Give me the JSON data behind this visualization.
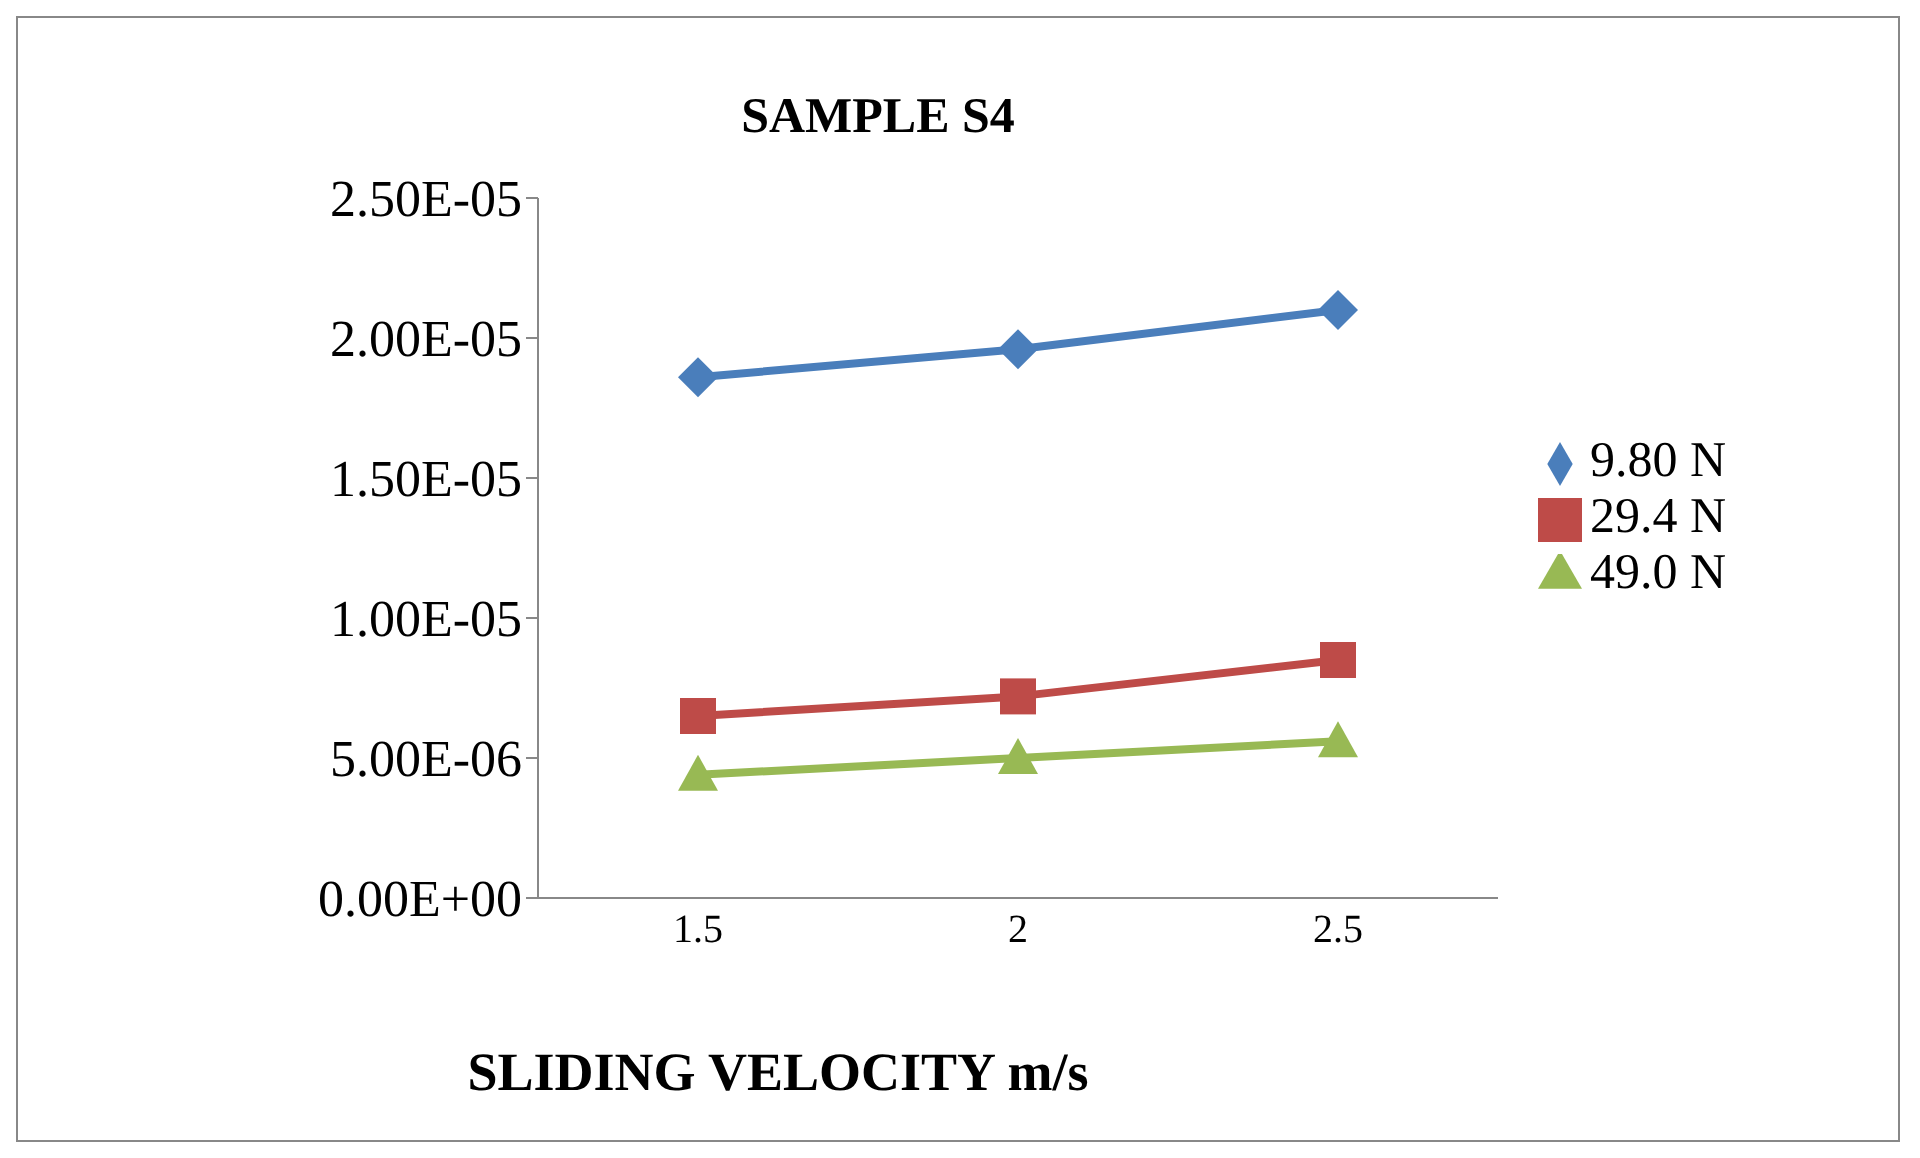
{
  "chart_data": {
    "type": "line",
    "title": "SAMPLE S4",
    "xlabel": "SLIDING VELOCITY m/s",
    "categories": [
      "1.5",
      "2",
      "2.5"
    ],
    "series": [
      {
        "name": "9.80 N",
        "color": "#4a7ebb",
        "values": [
          1.86e-05,
          1.96e-05,
          2.1e-05
        ],
        "marker": "diamond"
      },
      {
        "name": "29.4 N",
        "color": "#be4b48",
        "values": [
          6.5e-06,
          7.2e-06,
          8.5e-06
        ],
        "marker": "square"
      },
      {
        "name": "49.0 N",
        "color": "#98b954",
        "values": [
          4.4e-06,
          5e-06,
          5.6e-06
        ],
        "marker": "triangle"
      }
    ],
    "ylim": [
      0,
      2.5e-05
    ],
    "yticks": [
      {
        "value": 0,
        "label": "0.00E+00"
      },
      {
        "value": 5e-06,
        "label": "5.00E-06"
      },
      {
        "value": 1e-05,
        "label": "1.00E-05"
      },
      {
        "value": 1.5e-05,
        "label": "1.50E-05"
      },
      {
        "value": 2e-05,
        "label": "2.00E-05"
      },
      {
        "value": 2.5e-05,
        "label": "2.50E-05"
      }
    ],
    "grid": false,
    "legend": "right",
    "line_style": "solid"
  }
}
